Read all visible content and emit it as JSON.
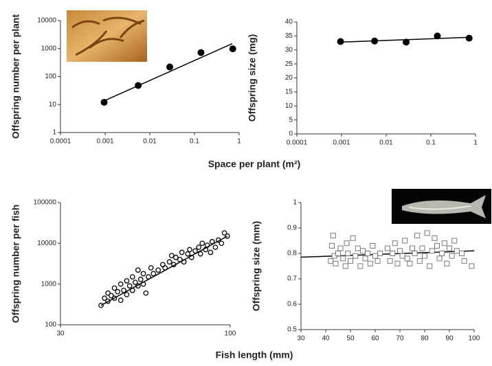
{
  "chart_data": [
    {
      "type": "scatter",
      "ylabel": "Offspring  number per plant",
      "xlog": true,
      "ylog": true,
      "xlim": [
        0.0001,
        1
      ],
      "ylim": [
        1,
        10000
      ],
      "xticks": [
        0.0001,
        0.001,
        0.01,
        0.1,
        1
      ],
      "yticks": [
        1,
        10,
        100,
        1000,
        10000
      ],
      "marker": "circle-filled",
      "color": "#000000",
      "x": [
        0.00095,
        0.0055,
        0.028,
        0.14,
        0.72
      ],
      "values": [
        12,
        48,
        220,
        720,
        980
      ],
      "fit_x": [
        0.0009,
        0.7
      ],
      "fit_y": [
        13,
        1500
      ]
    },
    {
      "type": "scatter",
      "ylabel": "Offspring size (mg)",
      "xlog": true,
      "ylog": false,
      "xlim": [
        0.0001,
        1
      ],
      "ylim": [
        0,
        40
      ],
      "xticks": [
        0.0001,
        0.001,
        0.01,
        0.1,
        1
      ],
      "yticks": [
        0,
        5,
        10,
        15,
        20,
        25,
        30,
        35,
        40
      ],
      "marker": "circle-filled",
      "color": "#000000",
      "x": [
        0.00095,
        0.0055,
        0.028,
        0.14,
        0.72
      ],
      "values": [
        33,
        33.2,
        32.8,
        35,
        34.2
      ],
      "fit_x": [
        0.0009,
        0.7
      ],
      "fit_y": [
        32.8,
        34.5
      ]
    },
    {
      "type": "scatter",
      "ylabel": "Offspring number per fish",
      "xlog": true,
      "ylog": true,
      "xlim": [
        30,
        100
      ],
      "ylim": [
        100,
        100000
      ],
      "xticks": [
        30,
        100
      ],
      "yticks": [
        100,
        1000,
        10000,
        100000
      ],
      "marker": "circle-open",
      "color": "#000000",
      "x": [
        40,
        41,
        42,
        42,
        43,
        44,
        44,
        45,
        46,
        46,
        47,
        48,
        48,
        49,
        50,
        50,
        51,
        52,
        52,
        53,
        54,
        54,
        55,
        56,
        57,
        58,
        60,
        62,
        63,
        65,
        66,
        67,
        68,
        70,
        71,
        72,
        74,
        75,
        76,
        78,
        80,
        81,
        82,
        84,
        85,
        87,
        88,
        90,
        92,
        94,
        96,
        98
      ],
      "values": [
        300,
        450,
        600,
        380,
        520,
        800,
        450,
        650,
        1000,
        400,
        700,
        1200,
        550,
        900,
        1500,
        700,
        1100,
        2200,
        900,
        1300,
        1800,
        1000,
        600,
        1500,
        2500,
        1800,
        2200,
        3000,
        2500,
        3500,
        5000,
        3000,
        4500,
        4000,
        6000,
        3500,
        5500,
        7000,
        4500,
        6500,
        8000,
        5500,
        10000,
        7000,
        9000,
        6000,
        11000,
        8000,
        12000,
        10000,
        18000,
        15000
      ],
      "fit_x": [
        40,
        98
      ],
      "fit_y": [
        300,
        15000
      ]
    },
    {
      "type": "scatter",
      "ylabel": "Offspring  size (mm)",
      "xlog": false,
      "ylog": false,
      "xlim": [
        30,
        100
      ],
      "ylim": [
        0.5,
        1
      ],
      "xticks": [
        30,
        40,
        50,
        60,
        70,
        80,
        90,
        100
      ],
      "yticks": [
        0.5,
        0.6,
        0.7,
        0.8,
        0.9,
        1
      ],
      "marker": "square-open",
      "color": "#777777",
      "x": [
        42,
        42.5,
        43,
        43.5,
        44,
        45,
        46,
        47,
        48,
        48.5,
        49,
        50,
        51,
        52,
        53,
        54,
        55,
        56,
        57,
        58,
        59,
        60,
        61,
        62,
        65,
        66,
        67,
        68,
        69,
        70,
        71,
        72,
        73,
        74,
        75,
        76,
        77,
        78,
        79,
        80,
        81,
        82,
        83,
        84,
        85,
        86,
        87,
        88,
        89,
        90,
        91,
        92,
        93,
        95,
        96,
        99
      ],
      "values": [
        0.77,
        0.83,
        0.87,
        0.79,
        0.76,
        0.8,
        0.82,
        0.78,
        0.75,
        0.84,
        0.8,
        0.77,
        0.86,
        0.79,
        0.82,
        0.75,
        0.81,
        0.78,
        0.8,
        0.76,
        0.83,
        0.79,
        0.77,
        0.8,
        0.82,
        0.77,
        0.8,
        0.84,
        0.76,
        0.81,
        0.79,
        0.85,
        0.78,
        0.76,
        0.82,
        0.8,
        0.87,
        0.77,
        0.82,
        0.79,
        0.88,
        0.75,
        0.81,
        0.86,
        0.83,
        0.78,
        0.8,
        0.84,
        0.76,
        0.82,
        0.79,
        0.85,
        0.81,
        0.8,
        0.77,
        0.75
      ],
      "fit_x": [
        30,
        100
      ],
      "fit_y": [
        0.785,
        0.81
      ]
    }
  ],
  "row_labels": [
    "Space per plant (m²)",
    "Fish length (mm)"
  ]
}
